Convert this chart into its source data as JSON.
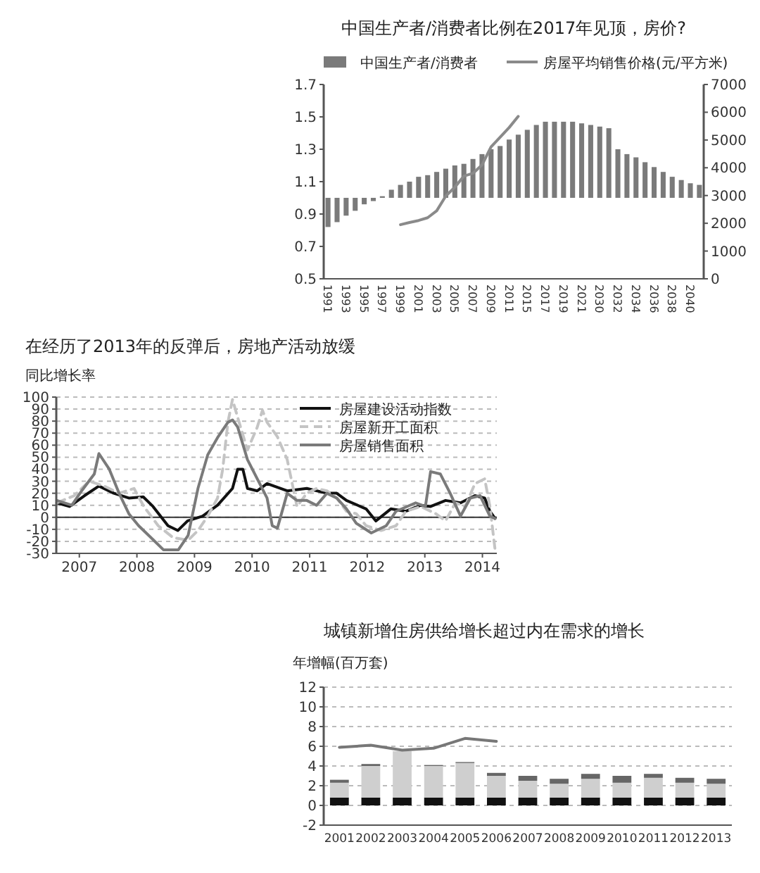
{
  "chart_data": [
    {
      "type": "bar",
      "title": "中国生产者/消费者比例在2017年见顶，房价?",
      "categories": [
        "1991",
        null,
        "1993",
        null,
        "1995",
        null,
        "1997",
        null,
        "1999",
        null,
        "2001",
        null,
        "2003",
        null,
        "2005",
        null,
        "2007",
        null,
        "2009",
        null,
        "2011",
        null,
        "2015",
        null,
        "2017",
        null,
        "2019",
        null,
        "2021",
        null,
        "2030",
        null,
        "2032",
        null,
        "2034",
        null,
        "2036",
        null,
        "2038",
        null,
        "2040",
        null
      ],
      "series": [
        {
          "name": "中国生产者/消费者",
          "color": "#7a7a7a",
          "base": [
            1,
            1,
            1,
            1,
            1,
            1,
            1,
            1,
            1,
            1,
            1,
            1,
            1,
            1,
            1,
            1,
            1,
            1,
            1,
            1,
            1,
            1,
            1,
            1,
            1,
            1,
            1,
            1,
            1,
            1,
            1,
            1,
            1,
            1,
            1,
            1,
            1,
            1,
            1,
            1,
            1,
            1
          ],
          "values": [
            -0.18,
            -0.15,
            -0.11,
            -0.08,
            -0.04,
            -0.02,
            0.01,
            0.05,
            0.08,
            0.1,
            0.13,
            0.14,
            0.16,
            0.18,
            0.2,
            0.21,
            0.24,
            0.27,
            0.3,
            0.32,
            0.36,
            0.39,
            0.42,
            0.45,
            0.47,
            0.47,
            0.47,
            0.47,
            0.46,
            0.45,
            0.44,
            0.43,
            0.3,
            0.27,
            0.25,
            0.22,
            0.19,
            0.16,
            0.13,
            0.11,
            0.09,
            0.08
          ]
        },
        {
          "name": "房屋平均销售价格(元/平方米)",
          "type": "line",
          "axis": "y2",
          "color": "#8a8a8a",
          "values": [
            null,
            null,
            null,
            null,
            null,
            null,
            null,
            null,
            1950,
            2030,
            2100,
            2200,
            2450,
            2980,
            3300,
            3700,
            3800,
            4100,
            4750,
            5100,
            5450,
            5850,
            null,
            null,
            null,
            null,
            null,
            null,
            null,
            null,
            null,
            null,
            null,
            null,
            null,
            null,
            null,
            null,
            null,
            null,
            null,
            null
          ]
        }
      ],
      "ylim": [
        0.5,
        1.7
      ],
      "yticks": [
        0.5,
        0.7,
        0.9,
        1.1,
        1.3,
        1.5,
        1.7
      ],
      "y2lim": [
        0,
        7000
      ],
      "y2ticks": [
        0,
        1000,
        2000,
        3000,
        4000,
        5000,
        6000,
        7000
      ],
      "legend": "top"
    },
    {
      "type": "line",
      "title": "在经历了2013年的反弹后，房地产活动放缓",
      "ylabel": "同比增长率",
      "xlim": [
        2007.1,
        2014.75
      ],
      "xticks": [
        {
          "value": 2007.5,
          "label": "2007"
        },
        {
          "value": 2008.5,
          "label": "2008"
        },
        {
          "value": 2009.5,
          "label": "2009"
        },
        {
          "value": 2010.5,
          "label": "2010"
        },
        {
          "value": 2011.5,
          "label": "2011"
        },
        {
          "value": 2012.5,
          "label": "2012"
        },
        {
          "value": 2013.5,
          "label": "2013"
        },
        {
          "value": 2014.5,
          "label": "2014"
        }
      ],
      "ylim": [
        -30,
        100
      ],
      "yticks": [
        -30,
        -20,
        -10,
        0,
        10,
        20,
        30,
        40,
        50,
        60,
        70,
        80,
        90,
        100
      ],
      "grid": "y",
      "legend": "top right",
      "ref_lines": [
        {
          "axis": "y",
          "value": 0
        }
      ],
      "series": [
        {
          "name": "房屋建设活动指数",
          "color": "#111111",
          "line_style": "solid",
          "x": [
            2007.11,
            2007.33,
            2007.59,
            2007.84,
            2008.1,
            2008.36,
            2008.61,
            2008.78,
            2009.04,
            2009.21,
            2009.38,
            2009.64,
            2009.9,
            2010.16,
            2010.25,
            2010.34,
            2010.42,
            2010.59,
            2010.76,
            2011.11,
            2011.45,
            2011.8,
            2011.97,
            2012.14,
            2012.48,
            2012.65,
            2012.91,
            2013.17,
            2013.43,
            2013.6,
            2013.86,
            2014.12,
            2014.37,
            2014.54,
            2014.63,
            2014.72
          ],
          "values": [
            12,
            9,
            18,
            26,
            20,
            16,
            17,
            9,
            -7,
            -11,
            -3,
            1,
            10,
            24,
            40,
            40,
            24,
            22,
            28,
            22,
            24,
            20,
            20,
            14,
            7,
            -3,
            7,
            5,
            10,
            9,
            14,
            12,
            18,
            16,
            5,
            -1
          ]
        },
        {
          "name": "房屋新开工面积",
          "color": "#c4c4c4",
          "line_style": "dashed",
          "x": [
            2007.11,
            2007.41,
            2007.67,
            2007.93,
            2008.19,
            2008.45,
            2008.62,
            2008.87,
            2009.13,
            2009.39,
            2009.56,
            2009.73,
            2009.9,
            2009.99,
            2010.08,
            2010.16,
            2010.25,
            2010.42,
            2010.59,
            2010.68,
            2010.76,
            2010.94,
            2011.11,
            2011.28,
            2011.45,
            2011.62,
            2011.8,
            2011.97,
            2012.14,
            2012.31,
            2012.48,
            2012.74,
            2013.0,
            2013.17,
            2013.43,
            2013.69,
            2013.86,
            2014.03,
            2014.2,
            2014.37,
            2014.54,
            2014.63,
            2014.72
          ],
          "values": [
            12,
            18,
            30,
            26,
            20,
            24,
            9,
            -7,
            -17,
            -19,
            -11,
            1,
            16,
            40,
            79,
            98,
            83,
            56,
            75,
            89,
            79,
            67,
            48,
            9,
            20,
            24,
            22,
            16,
            5,
            3,
            -7,
            -11,
            -7,
            5,
            9,
            3,
            -3,
            12,
            9,
            28,
            32,
            9,
            -27
          ]
        },
        {
          "name": "房屋销售面积",
          "color": "#7a7a7a",
          "line_style": "solid",
          "x": [
            2007.11,
            2007.37,
            2007.54,
            2007.76,
            2007.84,
            2008.02,
            2008.19,
            2008.36,
            2008.53,
            2008.79,
            2008.96,
            2009.22,
            2009.39,
            2009.56,
            2009.73,
            2009.91,
            2010.08,
            2010.16,
            2010.25,
            2010.42,
            2010.59,
            2010.76,
            2010.85,
            2010.94,
            2011.11,
            2011.28,
            2011.45,
            2011.62,
            2011.8,
            2011.97,
            2012.14,
            2012.31,
            2012.57,
            2012.83,
            2013.0,
            2013.34,
            2013.51,
            2013.6,
            2013.77,
            2013.94,
            2014.12,
            2014.29,
            2014.46,
            2014.63,
            2014.72
          ],
          "values": [
            14,
            10,
            22,
            36,
            53,
            40,
            20,
            3,
            -7,
            -19,
            -27,
            -27,
            -15,
            24,
            52,
            67,
            79,
            81,
            75,
            48,
            32,
            16,
            -7,
            -9,
            20,
            14,
            14,
            10,
            20,
            16,
            7,
            -5,
            -13,
            -7,
            5,
            12,
            9,
            38,
            36,
            20,
            1,
            16,
            18,
            1,
            -1
          ]
        }
      ]
    },
    {
      "type": "bar",
      "title": "城镇新增住房供给增长超过内在需求的增长",
      "ylabel": "年增幅(百万套)",
      "stacked": true,
      "categories": [
        "2001",
        "2002",
        "2003",
        "2004",
        "2005",
        "2006",
        "2007",
        "2008",
        "2009",
        "2010",
        "2011",
        "2012",
        "2013"
      ],
      "ylim": [
        -2,
        12
      ],
      "yticks": [
        -2,
        0,
        2,
        4,
        6,
        8,
        10,
        12
      ],
      "grid": "y",
      "series": [
        {
          "color": "#111111",
          "values": [
            0.8,
            0.8,
            0.8,
            0.8,
            0.8,
            0.8,
            0.8,
            0.8,
            0.8,
            0.8,
            0.8,
            0.8,
            0.8
          ]
        },
        {
          "color": "#cfcfcf",
          "values": [
            1.5,
            3.2,
            4.7,
            3.2,
            3.5,
            2.2,
            1.7,
            1.4,
            1.9,
            1.5,
            2.0,
            1.5,
            1.4
          ]
        },
        {
          "color": "#666666",
          "values": [
            0.3,
            0.2,
            null,
            0.1,
            0.1,
            0.3,
            0.5,
            0.5,
            0.5,
            0.7,
            0.4,
            0.5,
            0.5
          ]
        },
        {
          "type": "line",
          "color": "#777777",
          "values": [
            5.9,
            6.1,
            5.6,
            5.8,
            6.8,
            6.5,
            null,
            null,
            null,
            null,
            null,
            null,
            null
          ]
        }
      ]
    }
  ]
}
